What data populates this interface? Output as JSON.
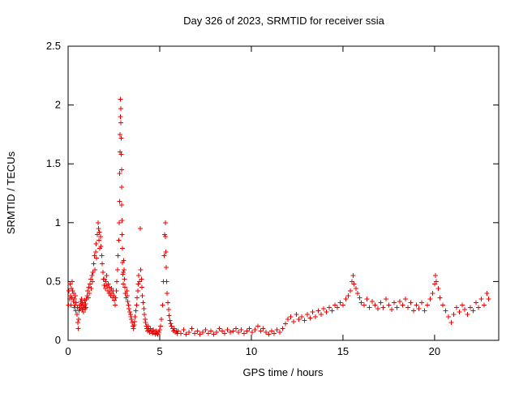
{
  "title": "Day 326 of 2023, SRMTID for receiver ssia",
  "chart_data": {
    "type": "scatter",
    "title": "Day 326 of 2023, SRMTID for receiver ssia",
    "xlabel": "GPS time / hours",
    "ylabel": "SRMTID / TECUs",
    "xlim": [
      0,
      23.5
    ],
    "ylim": [
      0,
      2.5
    ],
    "xticks": [
      0,
      5,
      10,
      15,
      20
    ],
    "yticks": [
      0,
      0.5,
      1,
      1.5,
      2,
      2.5
    ],
    "grid": false,
    "legend": "none",
    "marker": "plus",
    "marker_color": "#ee0000",
    "points": [
      [
        0.02,
        0.3
      ],
      [
        0.05,
        0.42
      ],
      [
        0.08,
        0.35
      ],
      [
        0.1,
        0.48
      ],
      [
        0.13,
        0.38
      ],
      [
        0.15,
        0.3
      ],
      [
        0.18,
        0.44
      ],
      [
        0.2,
        0.36
      ],
      [
        0.23,
        0.5
      ],
      [
        0.25,
        0.42
      ],
      [
        0.28,
        0.33
      ],
      [
        0.3,
        0.4
      ],
      [
        0.33,
        0.28
      ],
      [
        0.35,
        0.35
      ],
      [
        0.38,
        0.3
      ],
      [
        0.4,
        0.38
      ],
      [
        0.43,
        0.25
      ],
      [
        0.45,
        0.32
      ],
      [
        0.48,
        0.22
      ],
      [
        0.5,
        0.28
      ],
      [
        0.53,
        0.15
      ],
      [
        0.55,
        0.1
      ],
      [
        0.58,
        0.18
      ],
      [
        0.6,
        0.25
      ],
      [
        0.63,
        0.3
      ],
      [
        0.65,
        0.27
      ],
      [
        0.68,
        0.33
      ],
      [
        0.7,
        0.29
      ],
      [
        0.73,
        0.35
      ],
      [
        0.75,
        0.31
      ],
      [
        0.78,
        0.26
      ],
      [
        0.8,
        0.32
      ],
      [
        0.83,
        0.28
      ],
      [
        0.85,
        0.24
      ],
      [
        0.88,
        0.3
      ],
      [
        0.9,
        0.34
      ],
      [
        0.93,
        0.27
      ],
      [
        0.95,
        0.31
      ],
      [
        0.98,
        0.28
      ],
      [
        1.0,
        0.35
      ],
      [
        1.03,
        0.38
      ],
      [
        1.06,
        0.42
      ],
      [
        1.1,
        0.36
      ],
      [
        1.13,
        0.45
      ],
      [
        1.16,
        0.4
      ],
      [
        1.2,
        0.48
      ],
      [
        1.23,
        0.52
      ],
      [
        1.26,
        0.44
      ],
      [
        1.3,
        0.55
      ],
      [
        1.33,
        0.5
      ],
      [
        1.36,
        0.58
      ],
      [
        1.4,
        0.65
      ],
      [
        1.43,
        0.72
      ],
      [
        1.46,
        0.6
      ],
      [
        1.5,
        0.75
      ],
      [
        1.53,
        0.82
      ],
      [
        1.56,
        0.7
      ],
      [
        1.6,
        0.9
      ],
      [
        1.63,
        1.0
      ],
      [
        1.65,
        0.95
      ],
      [
        1.68,
        0.85
      ],
      [
        1.7,
        0.92
      ],
      [
        1.73,
        0.78
      ],
      [
        1.76,
        0.88
      ],
      [
        1.8,
        0.8
      ],
      [
        1.83,
        0.72
      ],
      [
        1.86,
        0.65
      ],
      [
        1.9,
        0.58
      ],
      [
        1.93,
        0.52
      ],
      [
        1.96,
        0.47
      ],
      [
        2.0,
        0.52
      ],
      [
        2.03,
        0.44
      ],
      [
        2.06,
        0.5
      ],
      [
        2.1,
        0.55
      ],
      [
        2.13,
        0.46
      ],
      [
        2.16,
        0.42
      ],
      [
        2.2,
        0.48
      ],
      [
        2.23,
        0.4
      ],
      [
        2.26,
        0.45
      ],
      [
        2.3,
        0.42
      ],
      [
        2.33,
        0.38
      ],
      [
        2.36,
        0.44
      ],
      [
        2.4,
        0.4
      ],
      [
        2.43,
        0.36
      ],
      [
        2.46,
        0.42
      ],
      [
        2.5,
        0.38
      ],
      [
        2.53,
        0.34
      ],
      [
        2.56,
        0.3
      ],
      [
        2.6,
        0.36
      ],
      [
        2.63,
        0.42
      ],
      [
        2.66,
        0.5
      ],
      [
        2.7,
        0.6
      ],
      [
        2.73,
        0.72
      ],
      [
        2.76,
        0.85
      ],
      [
        2.78,
        1.0
      ],
      [
        2.8,
        1.18
      ],
      [
        2.82,
        1.42
      ],
      [
        2.83,
        1.6
      ],
      [
        2.84,
        1.75
      ],
      [
        2.85,
        1.9
      ],
      [
        2.86,
        2.05
      ],
      [
        2.87,
        1.97
      ],
      [
        2.88,
        1.85
      ],
      [
        2.89,
        1.72
      ],
      [
        2.9,
        1.58
      ],
      [
        2.91,
        1.45
      ],
      [
        2.92,
        1.3
      ],
      [
        2.93,
        1.15
      ],
      [
        2.94,
        1.02
      ],
      [
        2.95,
        0.9
      ],
      [
        2.96,
        0.78
      ],
      [
        2.97,
        0.66
      ],
      [
        2.98,
        0.56
      ],
      [
        3.0,
        0.48
      ],
      [
        3.02,
        0.58
      ],
      [
        3.04,
        0.68
      ],
      [
        3.06,
        0.6
      ],
      [
        3.08,
        0.52
      ],
      [
        3.1,
        0.45
      ],
      [
        3.13,
        0.4
      ],
      [
        3.16,
        0.36
      ],
      [
        3.2,
        0.42
      ],
      [
        3.23,
        0.38
      ],
      [
        3.26,
        0.33
      ],
      [
        3.3,
        0.3
      ],
      [
        3.33,
        0.27
      ],
      [
        3.36,
        0.24
      ],
      [
        3.4,
        0.22
      ],
      [
        3.43,
        0.2
      ],
      [
        3.46,
        0.18
      ],
      [
        3.5,
        0.15
      ],
      [
        3.53,
        0.12
      ],
      [
        3.56,
        0.1
      ],
      [
        3.6,
        0.13
      ],
      [
        3.63,
        0.16
      ],
      [
        3.66,
        0.2
      ],
      [
        3.7,
        0.25
      ],
      [
        3.73,
        0.3
      ],
      [
        3.76,
        0.36
      ],
      [
        3.8,
        0.42
      ],
      [
        3.83,
        0.48
      ],
      [
        3.86,
        0.55
      ],
      [
        3.9,
        0.5
      ],
      [
        3.93,
        0.95
      ],
      [
        3.96,
        0.6
      ],
      [
        4.0,
        0.52
      ],
      [
        4.03,
        0.45
      ],
      [
        4.06,
        0.38
      ],
      [
        4.1,
        0.32
      ],
      [
        4.13,
        0.27
      ],
      [
        4.16,
        0.22
      ],
      [
        4.2,
        0.18
      ],
      [
        4.23,
        0.15
      ],
      [
        4.26,
        0.12
      ],
      [
        4.3,
        0.1
      ],
      [
        4.33,
        0.08
      ],
      [
        4.36,
        0.12
      ],
      [
        4.4,
        0.09
      ],
      [
        4.45,
        0.07
      ],
      [
        4.5,
        0.1
      ],
      [
        4.55,
        0.08
      ],
      [
        4.6,
        0.06
      ],
      [
        4.65,
        0.09
      ],
      [
        4.7,
        0.07
      ],
      [
        4.75,
        0.05
      ],
      [
        4.8,
        0.08
      ],
      [
        4.85,
        0.06
      ],
      [
        4.9,
        0.05
      ],
      [
        4.95,
        0.07
      ],
      [
        5.0,
        0.09
      ],
      [
        5.05,
        0.12
      ],
      [
        5.1,
        0.18
      ],
      [
        5.15,
        0.3
      ],
      [
        5.2,
        0.5
      ],
      [
        5.24,
        0.72
      ],
      [
        5.27,
        0.9
      ],
      [
        5.3,
        1.0
      ],
      [
        5.32,
        0.88
      ],
      [
        5.34,
        0.75
      ],
      [
        5.36,
        0.62
      ],
      [
        5.38,
        0.5
      ],
      [
        5.4,
        0.4
      ],
      [
        5.44,
        0.32
      ],
      [
        5.48,
        0.26
      ],
      [
        5.52,
        0.21
      ],
      [
        5.56,
        0.17
      ],
      [
        5.6,
        0.14
      ],
      [
        5.65,
        0.12
      ],
      [
        5.7,
        0.1
      ],
      [
        5.75,
        0.08
      ],
      [
        5.8,
        0.1
      ],
      [
        5.85,
        0.07
      ],
      [
        5.9,
        0.08
      ],
      [
        5.95,
        0.06
      ],
      [
        6.0,
        0.08
      ],
      [
        6.15,
        0.06
      ],
      [
        6.3,
        0.09
      ],
      [
        6.45,
        0.05
      ],
      [
        6.6,
        0.07
      ],
      [
        6.75,
        0.1
      ],
      [
        6.9,
        0.06
      ],
      [
        7.05,
        0.08
      ],
      [
        7.2,
        0.05
      ],
      [
        7.35,
        0.07
      ],
      [
        7.5,
        0.09
      ],
      [
        7.65,
        0.06
      ],
      [
        7.8,
        0.08
      ],
      [
        7.95,
        0.05
      ],
      [
        8.1,
        0.07
      ],
      [
        8.25,
        0.1
      ],
      [
        8.4,
        0.08
      ],
      [
        8.55,
        0.06
      ],
      [
        8.7,
        0.09
      ],
      [
        8.85,
        0.07
      ],
      [
        9.0,
        0.08
      ],
      [
        9.15,
        0.1
      ],
      [
        9.3,
        0.07
      ],
      [
        9.45,
        0.09
      ],
      [
        9.6,
        0.06
      ],
      [
        9.75,
        0.08
      ],
      [
        9.9,
        0.1
      ],
      [
        10.05,
        0.07
      ],
      [
        10.2,
        0.09
      ],
      [
        10.35,
        0.12
      ],
      [
        10.5,
        0.08
      ],
      [
        10.65,
        0.1
      ],
      [
        10.8,
        0.07
      ],
      [
        10.95,
        0.05
      ],
      [
        11.1,
        0.08
      ],
      [
        11.25,
        0.06
      ],
      [
        11.4,
        0.09
      ],
      [
        11.55,
        0.07
      ],
      [
        11.7,
        0.1
      ],
      [
        11.85,
        0.14
      ],
      [
        12.0,
        0.18
      ],
      [
        12.15,
        0.2
      ],
      [
        12.3,
        0.16
      ],
      [
        12.45,
        0.22
      ],
      [
        12.6,
        0.18
      ],
      [
        12.75,
        0.2
      ],
      [
        12.9,
        0.17
      ],
      [
        13.05,
        0.22
      ],
      [
        13.2,
        0.19
      ],
      [
        13.35,
        0.24
      ],
      [
        13.5,
        0.2
      ],
      [
        13.65,
        0.25
      ],
      [
        13.8,
        0.22
      ],
      [
        13.95,
        0.27
      ],
      [
        14.1,
        0.24
      ],
      [
        14.25,
        0.28
      ],
      [
        14.4,
        0.25
      ],
      [
        14.55,
        0.3
      ],
      [
        14.7,
        0.28
      ],
      [
        14.85,
        0.32
      ],
      [
        15.0,
        0.3
      ],
      [
        15.15,
        0.35
      ],
      [
        15.3,
        0.38
      ],
      [
        15.4,
        0.42
      ],
      [
        15.5,
        0.5
      ],
      [
        15.55,
        0.55
      ],
      [
        15.6,
        0.48
      ],
      [
        15.7,
        0.44
      ],
      [
        15.8,
        0.4
      ],
      [
        15.9,
        0.36
      ],
      [
        16.0,
        0.32
      ],
      [
        16.15,
        0.3
      ],
      [
        16.3,
        0.35
      ],
      [
        16.45,
        0.28
      ],
      [
        16.6,
        0.33
      ],
      [
        16.75,
        0.3
      ],
      [
        16.9,
        0.27
      ],
      [
        17.05,
        0.32
      ],
      [
        17.2,
        0.28
      ],
      [
        17.35,
        0.35
      ],
      [
        17.5,
        0.3
      ],
      [
        17.65,
        0.26
      ],
      [
        17.8,
        0.32
      ],
      [
        17.95,
        0.28
      ],
      [
        18.1,
        0.33
      ],
      [
        18.25,
        0.3
      ],
      [
        18.4,
        0.35
      ],
      [
        18.55,
        0.28
      ],
      [
        18.7,
        0.32
      ],
      [
        18.85,
        0.25
      ],
      [
        19.0,
        0.3
      ],
      [
        19.15,
        0.27
      ],
      [
        19.3,
        0.32
      ],
      [
        19.45,
        0.25
      ],
      [
        19.6,
        0.3
      ],
      [
        19.75,
        0.35
      ],
      [
        19.9,
        0.4
      ],
      [
        20.0,
        0.48
      ],
      [
        20.05,
        0.55
      ],
      [
        20.1,
        0.5
      ],
      [
        20.2,
        0.44
      ],
      [
        20.3,
        0.36
      ],
      [
        20.45,
        0.3
      ],
      [
        20.6,
        0.25
      ],
      [
        20.75,
        0.2
      ],
      [
        20.9,
        0.15
      ],
      [
        21.05,
        0.22
      ],
      [
        21.2,
        0.28
      ],
      [
        21.35,
        0.24
      ],
      [
        21.5,
        0.3
      ],
      [
        21.65,
        0.26
      ],
      [
        21.8,
        0.22
      ],
      [
        21.95,
        0.28
      ],
      [
        22.1,
        0.25
      ],
      [
        22.25,
        0.32
      ],
      [
        22.4,
        0.28
      ],
      [
        22.55,
        0.35
      ],
      [
        22.7,
        0.3
      ],
      [
        22.85,
        0.4
      ],
      [
        22.95,
        0.35
      ]
    ]
  }
}
